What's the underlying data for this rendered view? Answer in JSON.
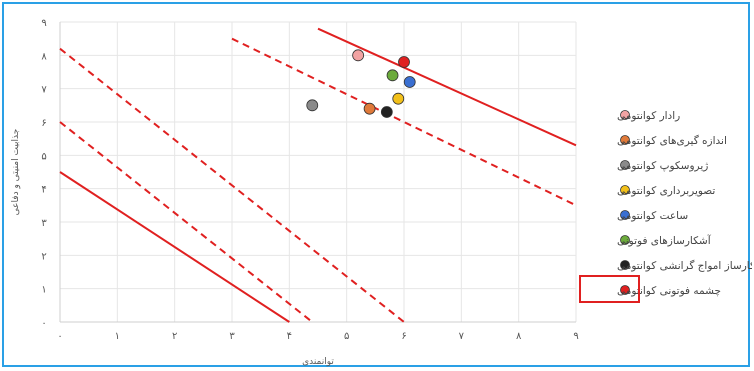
{
  "chart_data": {
    "type": "scatter",
    "title": "",
    "xlabel": "توانمندی",
    "ylabel": "جذابیت امنیتی و دفاعی",
    "xlim": [
      0,
      9
    ],
    "ylim": [
      0,
      9
    ],
    "x_ticks": [
      "۰",
      "۱",
      "۲",
      "۳",
      "۴",
      "۵",
      "۶",
      "۷",
      "۸",
      "۹"
    ],
    "y_ticks": [
      "۰",
      "۱",
      "۲",
      "۳",
      "۴",
      "۵",
      "۶",
      "۷",
      "۸",
      "۹"
    ],
    "grid": true,
    "legend_position": "right",
    "series": [
      {
        "name": "رادار کوانتومی",
        "color": "#f2a3a3",
        "x": 5.2,
        "y": 8.0
      },
      {
        "name": "اندازه گیری‌های کوانتومی",
        "color": "#e07a3a",
        "x": 5.4,
        "y": 6.4
      },
      {
        "name": "ژیروسکوپ کوانتومی",
        "color": "#8a8a8a",
        "x": 4.4,
        "y": 6.5
      },
      {
        "name": "تصویربرداری کوانتومی",
        "color": "#f2c01a",
        "x": 5.9,
        "y": 6.7
      },
      {
        "name": "ساعت کوانتومی",
        "color": "#3a6fd1",
        "x": 6.1,
        "y": 7.2
      },
      {
        "name": "آشکارسازهای فوتونی",
        "color": "#6cab3c",
        "x": 5.8,
        "y": 7.4
      },
      {
        "name": "شکارساز امواج گرانشی کوانتومی",
        "color": "#222222",
        "x": 5.7,
        "y": 6.3
      },
      {
        "name": "چشمه فوتونی کوانتومی",
        "color": "#e02020",
        "x": 6.0,
        "y": 7.8
      }
    ],
    "highlighted_series": "چشمه فوتونی کوانتومی",
    "reference_lines": [
      {
        "style": "solid",
        "color": "#e02020",
        "from": [
          4.5,
          8.8
        ],
        "to": [
          9.0,
          5.3
        ]
      },
      {
        "style": "dashed",
        "color": "#e02020",
        "from": [
          3.0,
          8.5
        ],
        "to": [
          9.0,
          3.5
        ]
      },
      {
        "style": "dashed",
        "color": "#e02020",
        "from": [
          0.0,
          8.2
        ],
        "to": [
          6.0,
          0.0
        ]
      },
      {
        "style": "dashed",
        "color": "#e02020",
        "from": [
          0.0,
          6.0
        ],
        "to": [
          4.4,
          0.0
        ]
      },
      {
        "style": "solid",
        "color": "#e02020",
        "from": [
          0.0,
          4.5
        ],
        "to": [
          4.0,
          0.0
        ]
      }
    ]
  }
}
